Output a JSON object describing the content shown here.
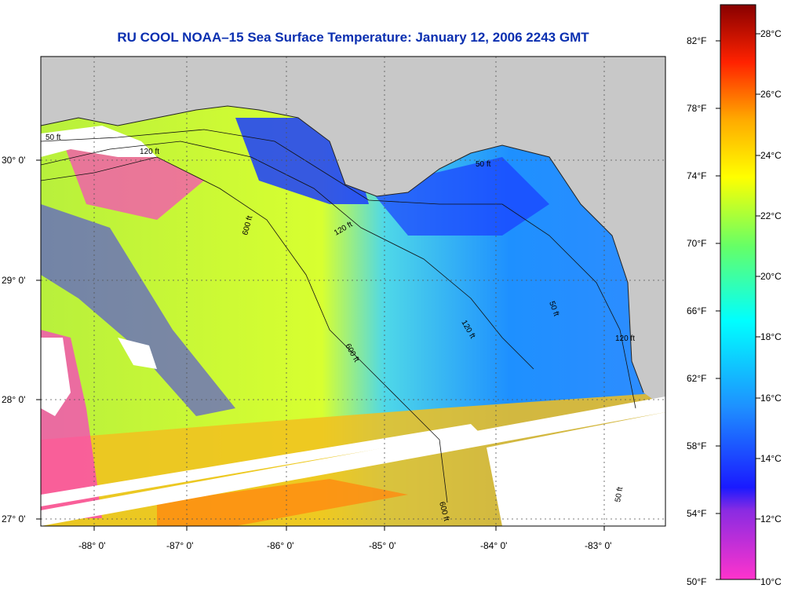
{
  "title": "RU COOL  NOAA–15  Sea Surface Temperature:  January 12, 2006 2243 GMT",
  "map": {
    "lon_labels": [
      "-88° 0'",
      "-87° 0'",
      "-86° 0'",
      "-85° 0'",
      "-84° 0'",
      "-83° 0'"
    ],
    "lat_labels": [
      "30° 0'",
      "29° 0'",
      "28° 0'",
      "27° 0'"
    ],
    "contour_labels": [
      "50 ft",
      "120 ft",
      "600 ft",
      "120 ft",
      "50 ft",
      "120 ft",
      "600 ft",
      "50 ft",
      "120 ft",
      "600 ft",
      "50 ft"
    ],
    "colors": {
      "land": "#c8c8c8",
      "cloud": "#ffffff",
      "grid": "#555555"
    }
  },
  "colorbar": {
    "fahrenheit_labels": [
      "82°F",
      "78°F",
      "74°F",
      "70°F",
      "66°F",
      "62°F",
      "58°F",
      "54°F",
      "50°F"
    ],
    "celsius_labels": [
      "28°C",
      "26°C",
      "24°C",
      "22°C",
      "20°C",
      "18°C",
      "16°C",
      "14°C",
      "12°C",
      "10°C"
    ]
  }
}
